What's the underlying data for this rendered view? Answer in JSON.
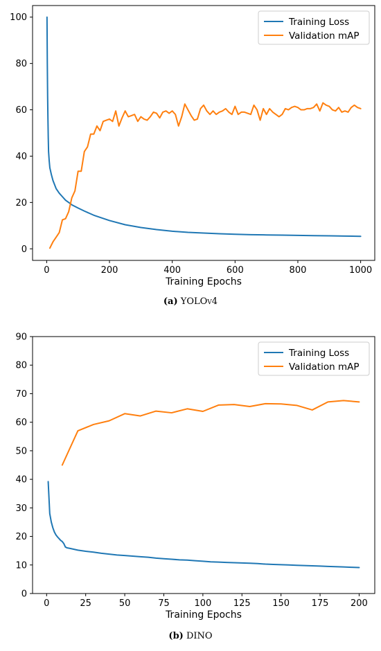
{
  "chart_data": [
    {
      "type": "line",
      "caption_letter": "(a)",
      "caption_name": "YOLOv4",
      "xlabel": "Training Epochs",
      "ylabel": "",
      "xlim": [
        -45,
        1045
      ],
      "ylim": [
        -5,
        105
      ],
      "xticks": [
        0,
        200,
        400,
        600,
        800,
        1000
      ],
      "yticks": [
        0,
        20,
        40,
        60,
        80,
        100
      ],
      "legend_position": "top-right",
      "series": [
        {
          "name": "Training Loss",
          "color": "#1f77b4",
          "points": [
            [
              1,
              100
            ],
            [
              2,
              80
            ],
            [
              3,
              66
            ],
            [
              4,
              56
            ],
            [
              5,
              48
            ],
            [
              6,
              42
            ],
            [
              8,
              38
            ],
            [
              10,
              35
            ],
            [
              15,
              32
            ],
            [
              20,
              29.5
            ],
            [
              30,
              26
            ],
            [
              40,
              24
            ],
            [
              50,
              22.5
            ],
            [
              60,
              21
            ],
            [
              70,
              20
            ],
            [
              80,
              19
            ],
            [
              100,
              17.6
            ],
            [
              120,
              16.3
            ],
            [
              150,
              14.5
            ],
            [
              200,
              12.2
            ],
            [
              250,
              10.4
            ],
            [
              300,
              9.2
            ],
            [
              350,
              8.3
            ],
            [
              400,
              7.6
            ],
            [
              450,
              7.1
            ],
            [
              500,
              6.8
            ],
            [
              550,
              6.5
            ],
            [
              600,
              6.3
            ],
            [
              650,
              6.1
            ],
            [
              700,
              6.0
            ],
            [
              750,
              5.9
            ],
            [
              800,
              5.8
            ],
            [
              850,
              5.7
            ],
            [
              900,
              5.6
            ],
            [
              950,
              5.5
            ],
            [
              1000,
              5.4
            ]
          ]
        },
        {
          "name": "Validation mAP",
          "color": "#ff7f0e",
          "points": [
            [
              10,
              0.3
            ],
            [
              20,
              3
            ],
            [
              30,
              5
            ],
            [
              40,
              7
            ],
            [
              50,
              12.5
            ],
            [
              60,
              13
            ],
            [
              70,
              16
            ],
            [
              80,
              22
            ],
            [
              90,
              25
            ],
            [
              100,
              33.5
            ],
            [
              110,
              33.5
            ],
            [
              120,
              42
            ],
            [
              130,
              44
            ],
            [
              140,
              49.5
            ],
            [
              150,
              49.5
            ],
            [
              160,
              53
            ],
            [
              170,
              51
            ],
            [
              180,
              55
            ],
            [
              190,
              55.5
            ],
            [
              200,
              56
            ],
            [
              210,
              55
            ],
            [
              220,
              59.5
            ],
            [
              230,
              53
            ],
            [
              240,
              56.5
            ],
            [
              250,
              59.5
            ],
            [
              260,
              57
            ],
            [
              270,
              57.5
            ],
            [
              280,
              58
            ],
            [
              290,
              55
            ],
            [
              300,
              57
            ],
            [
              310,
              56
            ],
            [
              320,
              55.5
            ],
            [
              330,
              57
            ],
            [
              340,
              59
            ],
            [
              350,
              58.5
            ],
            [
              360,
              56.5
            ],
            [
              370,
              59
            ],
            [
              380,
              59.5
            ],
            [
              390,
              58.5
            ],
            [
              400,
              59.5
            ],
            [
              410,
              58
            ],
            [
              420,
              53
            ],
            [
              430,
              57
            ],
            [
              440,
              62.5
            ],
            [
              450,
              60
            ],
            [
              460,
              57.5
            ],
            [
              470,
              55.5
            ],
            [
              480,
              56
            ],
            [
              490,
              60.5
            ],
            [
              500,
              62
            ],
            [
              510,
              59.5
            ],
            [
              520,
              58
            ],
            [
              530,
              59.5
            ],
            [
              540,
              58
            ],
            [
              550,
              59
            ],
            [
              560,
              59.5
            ],
            [
              570,
              60.5
            ],
            [
              580,
              59
            ],
            [
              590,
              58
            ],
            [
              600,
              61.5
            ],
            [
              610,
              58
            ],
            [
              620,
              59
            ],
            [
              630,
              59
            ],
            [
              640,
              58.5
            ],
            [
              650,
              58
            ],
            [
              660,
              62
            ],
            [
              670,
              60
            ],
            [
              680,
              55.5
            ],
            [
              690,
              60.5
            ],
            [
              700,
              58
            ],
            [
              710,
              60.5
            ],
            [
              720,
              59
            ],
            [
              730,
              58
            ],
            [
              740,
              57
            ],
            [
              750,
              58
            ],
            [
              760,
              60.5
            ],
            [
              770,
              60
            ],
            [
              780,
              61
            ],
            [
              790,
              61.5
            ],
            [
              800,
              61
            ],
            [
              810,
              60
            ],
            [
              820,
              60
            ],
            [
              830,
              60.5
            ],
            [
              840,
              60.5
            ],
            [
              850,
              61
            ],
            [
              860,
              62.5
            ],
            [
              870,
              59.5
            ],
            [
              880,
              63
            ],
            [
              890,
              62
            ],
            [
              900,
              61.5
            ],
            [
              910,
              60
            ],
            [
              920,
              59.5
            ],
            [
              930,
              61
            ],
            [
              940,
              59
            ],
            [
              950,
              59.5
            ],
            [
              960,
              59
            ],
            [
              970,
              61
            ],
            [
              980,
              62
            ],
            [
              990,
              61
            ],
            [
              1000,
              60.5
            ]
          ]
        }
      ]
    },
    {
      "type": "line",
      "caption_letter": "(b)",
      "caption_name": "DINO",
      "xlabel": "Training Epochs",
      "ylabel": "",
      "xlim": [
        -9,
        210
      ],
      "ylim": [
        0,
        90
      ],
      "xticks": [
        0,
        25,
        50,
        75,
        100,
        125,
        150,
        175,
        200
      ],
      "yticks": [
        0,
        10,
        20,
        30,
        40,
        50,
        60,
        70,
        80,
        90
      ],
      "legend_position": "top-right",
      "series": [
        {
          "name": "Training Loss",
          "color": "#1f77b4",
          "points": [
            [
              1,
              39.2
            ],
            [
              2,
              28
            ],
            [
              3,
              25
            ],
            [
              4,
              23
            ],
            [
              5,
              21.5
            ],
            [
              6,
              20.5
            ],
            [
              7,
              19.8
            ],
            [
              8,
              19.2
            ],
            [
              9,
              18.6
            ],
            [
              10,
              18.2
            ],
            [
              11,
              17.5
            ],
            [
              12,
              16.3
            ],
            [
              13,
              16
            ],
            [
              15,
              15.8
            ],
            [
              20,
              15.2
            ],
            [
              25,
              14.8
            ],
            [
              30,
              14.5
            ],
            [
              35,
              14.1
            ],
            [
              40,
              13.8
            ],
            [
              45,
              13.5
            ],
            [
              50,
              13.3
            ],
            [
              55,
              13.1
            ],
            [
              60,
              12.9
            ],
            [
              65,
              12.7
            ],
            [
              70,
              12.4
            ],
            [
              75,
              12.2
            ],
            [
              80,
              12.0
            ],
            [
              85,
              11.8
            ],
            [
              90,
              11.7
            ],
            [
              95,
              11.5
            ],
            [
              100,
              11.3
            ],
            [
              105,
              11.1
            ],
            [
              110,
              11.0
            ],
            [
              115,
              10.9
            ],
            [
              120,
              10.8
            ],
            [
              125,
              10.7
            ],
            [
              130,
              10.6
            ],
            [
              135,
              10.5
            ],
            [
              140,
              10.3
            ],
            [
              145,
              10.2
            ],
            [
              150,
              10.1
            ],
            [
              155,
              10.0
            ],
            [
              160,
              9.9
            ],
            [
              165,
              9.8
            ],
            [
              170,
              9.7
            ],
            [
              175,
              9.6
            ],
            [
              180,
              9.5
            ],
            [
              185,
              9.4
            ],
            [
              190,
              9.3
            ],
            [
              195,
              9.2
            ],
            [
              200,
              9.1
            ]
          ]
        },
        {
          "name": "Validation mAP",
          "color": "#ff7f0e",
          "points": [
            [
              10,
              45
            ],
            [
              20,
              57
            ],
            [
              30,
              59.2
            ],
            [
              40,
              60.5
            ],
            [
              50,
              63
            ],
            [
              60,
              62.2
            ],
            [
              70,
              63.9
            ],
            [
              80,
              63.3
            ],
            [
              90,
              64.7
            ],
            [
              100,
              63.8
            ],
            [
              110,
              66
            ],
            [
              120,
              66.2
            ],
            [
              130,
              65.5
            ],
            [
              140,
              66.5
            ],
            [
              150,
              66.4
            ],
            [
              160,
              65.9
            ],
            [
              170,
              64.3
            ],
            [
              180,
              67.1
            ],
            [
              190,
              67.6
            ],
            [
              200,
              67.1
            ]
          ]
        }
      ]
    }
  ]
}
